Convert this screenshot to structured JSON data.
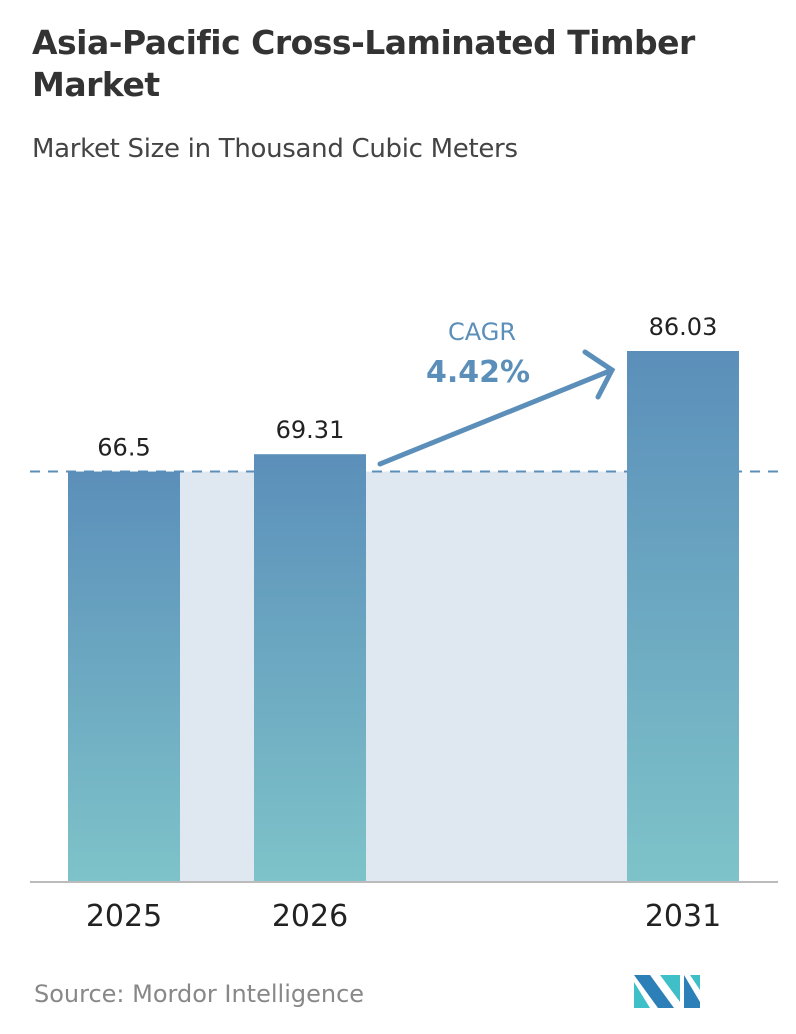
{
  "title": "Asia-Pacific Cross-Laminated Timber Market",
  "subtitle": "Market Size in Thousand Cubic Meters",
  "source": "Source:  Mordor Intelligence",
  "logo_text": "Mordor Intelligence",
  "colors": {
    "bar_top": "#5b8fba",
    "bar_bottom": "#7ec3c9",
    "accent": "#5b8fba",
    "band": "#dfe7f0"
  },
  "chart_data": {
    "type": "bar",
    "categories": [
      "2025",
      "2026",
      "2031"
    ],
    "values": [
      66.5,
      69.31,
      86.03
    ],
    "data_labels": [
      "66.5",
      "69.31",
      "86.03"
    ],
    "annotation": {
      "label": "CAGR",
      "value": "4.42%"
    },
    "ylim": [
      0,
      86.03
    ],
    "grid": false,
    "xlabel": "",
    "ylabel": ""
  }
}
